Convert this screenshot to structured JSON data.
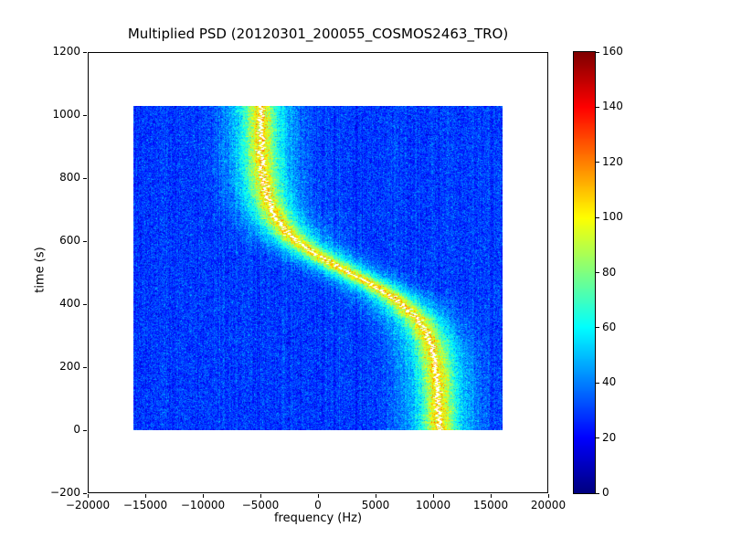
{
  "chart_data": {
    "type": "heatmap",
    "title": "Multiplied PSD (20120301_200055_COSMOS2463_TRO)",
    "xlabel": "frequency (Hz)",
    "ylabel": "time (s)",
    "xlim": [
      -20000,
      20000
    ],
    "ylim": [
      -200,
      1200
    ],
    "x_ticks": [
      -20000,
      -15000,
      -10000,
      -5000,
      0,
      5000,
      10000,
      15000,
      20000
    ],
    "x_tick_labels": [
      "−20000",
      "−15000",
      "−10000",
      "−5000",
      "0",
      "5000",
      "10000",
      "15000",
      "20000"
    ],
    "y_ticks": [
      -200,
      0,
      200,
      400,
      600,
      800,
      1000,
      1200
    ],
    "y_tick_labels": [
      "−200",
      "0",
      "200",
      "400",
      "600",
      "800",
      "1000",
      "1200"
    ],
    "data_extent": {
      "x": [
        -16000,
        16000
      ],
      "y": [
        0,
        1030
      ]
    },
    "colormap": "jet",
    "colorbar": {
      "min": 0,
      "max": 160,
      "ticks": [
        0,
        20,
        40,
        60,
        80,
        100,
        120,
        140,
        160
      ],
      "tick_labels": [
        "0",
        "20",
        "40",
        "60",
        "80",
        "100",
        "120",
        "140",
        "160"
      ]
    },
    "background_level": {
      "mean": 29,
      "noise_std": 7
    },
    "doppler_track": {
      "model": "center(t) = offset + amplitude * tanh((t_mid - t) / tau)",
      "offset_hz": 2750,
      "amplitude_hz": 7750,
      "t_mid_s": 500,
      "tau_s": 150,
      "band_amp_outer": 40,
      "band_amp_inner": 36,
      "band_sigma_outer_hz": 2800,
      "band_sigma_inner_hz": 1100,
      "band_peak_value": 105,
      "white_core_halfwidth_hz": 130,
      "samples": [
        {
          "t": 0,
          "f": 10480
        },
        {
          "t": 100,
          "f": 10400
        },
        {
          "t": 200,
          "f": 10120
        },
        {
          "t": 300,
          "f": 9150
        },
        {
          "t": 400,
          "f": 7090
        },
        {
          "t": 500,
          "f": 2750
        },
        {
          "t": 600,
          "f": -1590
        },
        {
          "t": 700,
          "f": -3930
        },
        {
          "t": 800,
          "f": -4620
        },
        {
          "t": 900,
          "f": -4890
        },
        {
          "t": 1030,
          "f": -4990
        }
      ]
    }
  }
}
